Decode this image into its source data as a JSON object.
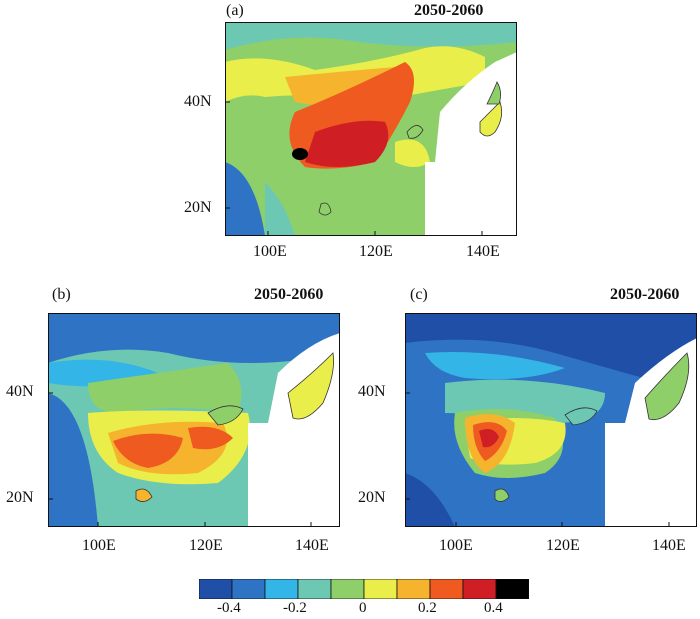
{
  "panels": [
    {
      "label": "(a)",
      "period": "2050-2060",
      "lat_labels": [
        "40N",
        "20N"
      ],
      "lon_labels": [
        "100E",
        "120E",
        "140E"
      ]
    },
    {
      "label": "(b)",
      "period": "2050-2060",
      "lat_labels": [
        "40N",
        "20N"
      ],
      "lon_labels": [
        "100E",
        "120E",
        "140E"
      ]
    },
    {
      "label": "(c)",
      "period": "2050-2060",
      "lat_labels": [
        "40N",
        "20N"
      ],
      "lon_labels": [
        "100E",
        "120E",
        "140E"
      ]
    }
  ],
  "colorbar": {
    "tick_labels": [
      "-0.4",
      "-0.2",
      "0",
      "0.2",
      "0.4"
    ],
    "colors": [
      "#1f4fa6",
      "#2f73c4",
      "#33b5e8",
      "#6cc8b3",
      "#8fcf6a",
      "#e9ee4b",
      "#f6b32e",
      "#ee5a1f",
      "#cf1f25",
      "#000000"
    ]
  }
}
